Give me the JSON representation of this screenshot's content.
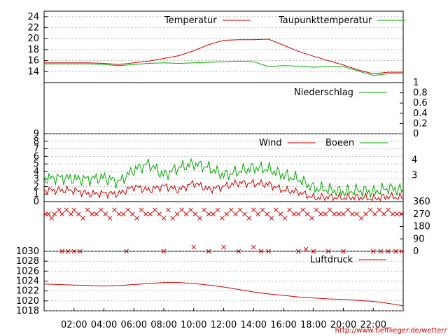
{
  "footer_url": "http://www.tiefflieger.de/wetter/",
  "colors": {
    "red": "#cc0000",
    "green": "#00aa00",
    "grid": "#999999"
  },
  "chart_data": [
    {
      "type": "line",
      "name": "temperature-panel",
      "ylim": [
        12,
        25
      ],
      "yticks": [
        "14",
        "16",
        "18",
        "20",
        "22",
        "24"
      ],
      "ytick_values": [
        14,
        16,
        18,
        20,
        22,
        24
      ],
      "x": [
        0,
        1,
        2,
        3,
        4,
        5,
        6,
        7,
        8,
        9,
        10,
        11,
        12,
        13,
        14,
        15,
        16,
        17,
        18,
        19,
        20,
        21,
        22,
        23,
        24
      ],
      "series": [
        {
          "name": "Temperatur",
          "color": "red",
          "values": [
            15.6,
            15.6,
            15.6,
            15.6,
            15.5,
            15.3,
            15.6,
            15.9,
            16.4,
            16.9,
            17.8,
            18.9,
            19.7,
            19.8,
            19.8,
            19.9,
            18.8,
            17.7,
            16.8,
            16.0,
            15.2,
            14.3,
            13.6,
            13.9,
            13.9
          ]
        },
        {
          "name": "Taupunkttemperatur",
          "color": "green",
          "values": [
            15.4,
            15.4,
            15.4,
            15.4,
            15.3,
            15.1,
            15.3,
            15.5,
            15.6,
            15.5,
            15.6,
            15.7,
            15.8,
            15.9,
            15.8,
            14.9,
            15.1,
            15.0,
            14.8,
            14.9,
            14.9,
            14.1,
            13.3,
            13.6,
            13.6
          ]
        }
      ]
    },
    {
      "type": "line",
      "name": "precipitation-panel",
      "ylim": [
        0,
        1
      ],
      "yticks": [
        "0",
        "0.2",
        "0.4",
        "0.6",
        "0.8",
        "1"
      ],
      "ytick_values": [
        0,
        0.2,
        0.4,
        0.6,
        0.8,
        1
      ],
      "x": [
        0,
        24
      ],
      "series": [
        {
          "name": "Niederschlag",
          "color": "green",
          "values": [
            0,
            0
          ]
        }
      ]
    },
    {
      "type": "line",
      "name": "wind-panel",
      "ylim": [
        0,
        9
      ],
      "yticks": [
        "0",
        "1",
        "2",
        "3",
        "4",
        "5",
        "6",
        "7",
        "8",
        "9"
      ],
      "ytick_values": [
        0,
        1,
        2,
        3,
        4,
        5,
        6,
        7,
        8,
        9
      ],
      "right_ticks": [
        "3",
        "4"
      ],
      "right_tick_values": [
        3.5,
        5.5
      ],
      "x": [
        0,
        1,
        2,
        3,
        4,
        5,
        6,
        7,
        8,
        9,
        10,
        11,
        12,
        13,
        14,
        15,
        16,
        17,
        18,
        19,
        20,
        21,
        22,
        23,
        24
      ],
      "series": [
        {
          "name": "Wind",
          "color": "red",
          "values": [
            1.5,
            1.5,
            1.5,
            1.0,
            1.1,
            1.0,
            2.0,
            1.5,
            2.1,
            1.5,
            2.5,
            1.6,
            2.0,
            2.5,
            2.4,
            2.3,
            1.5,
            1.3,
            0.5,
            0.6,
            0.5,
            0.6,
            0.4,
            0.7,
            0.5
          ]
        },
        {
          "name": "Boeen",
          "color": "green",
          "values": [
            3.0,
            3.2,
            3.0,
            3.0,
            3.2,
            2.6,
            4.2,
            5.0,
            3.5,
            4.5,
            5.0,
            4.5,
            3.5,
            4.0,
            4.5,
            4.3,
            3.5,
            3.0,
            1.8,
            1.6,
            1.3,
            1.5,
            1.3,
            1.8,
            1.5
          ]
        }
      ]
    },
    {
      "type": "scatter",
      "name": "wind-direction-panel",
      "ylim": [
        0,
        360
      ],
      "yticks": [
        "0",
        "90",
        "180",
        "270",
        "360"
      ],
      "ytick_values": [
        0,
        90,
        180,
        270,
        360
      ],
      "color": "red",
      "points": [
        [
          0.1,
          270
        ],
        [
          0.3,
          270
        ],
        [
          0.5,
          240
        ],
        [
          0.7,
          270
        ],
        [
          1.0,
          300
        ],
        [
          1.2,
          270
        ],
        [
          1.5,
          300
        ],
        [
          1.8,
          270
        ],
        [
          2.0,
          300
        ],
        [
          2.3,
          270
        ],
        [
          2.6,
          240
        ],
        [
          2.9,
          300
        ],
        [
          3.2,
          270
        ],
        [
          3.5,
          270
        ],
        [
          3.8,
          300
        ],
        [
          4.1,
          270
        ],
        [
          4.4,
          240
        ],
        [
          4.7,
          300
        ],
        [
          5.0,
          270
        ],
        [
          5.3,
          270
        ],
        [
          5.6,
          300
        ],
        [
          5.9,
          270
        ],
        [
          6.2,
          240
        ],
        [
          6.5,
          300
        ],
        [
          6.8,
          270
        ],
        [
          7.1,
          270
        ],
        [
          7.4,
          300
        ],
        [
          7.7,
          270
        ],
        [
          8.0,
          240
        ],
        [
          8.3,
          300
        ],
        [
          8.6,
          240
        ],
        [
          8.9,
          270
        ],
        [
          9.2,
          300
        ],
        [
          9.5,
          270
        ],
        [
          9.8,
          300
        ],
        [
          10.1,
          270
        ],
        [
          10.4,
          240
        ],
        [
          10.7,
          300
        ],
        [
          11.0,
          270
        ],
        [
          11.3,
          270
        ],
        [
          11.6,
          300
        ],
        [
          11.9,
          240
        ],
        [
          12.2,
          270
        ],
        [
          12.5,
          300
        ],
        [
          12.8,
          270
        ],
        [
          13.1,
          300
        ],
        [
          13.4,
          270
        ],
        [
          13.7,
          240
        ],
        [
          14.0,
          300
        ],
        [
          14.3,
          270
        ],
        [
          14.6,
          300
        ],
        [
          14.9,
          270
        ],
        [
          15.2,
          240
        ],
        [
          15.5,
          300
        ],
        [
          15.8,
          270
        ],
        [
          16.1,
          240
        ],
        [
          16.4,
          300
        ],
        [
          16.7,
          270
        ],
        [
          17.0,
          270
        ],
        [
          17.3,
          300
        ],
        [
          17.6,
          270
        ],
        [
          17.9,
          240
        ],
        [
          18.2,
          300
        ],
        [
          18.5,
          270
        ],
        [
          18.8,
          270
        ],
        [
          19.1,
          300
        ],
        [
          19.4,
          270
        ],
        [
          19.7,
          270
        ],
        [
          20.0,
          270
        ],
        [
          20.3,
          300
        ],
        [
          20.6,
          270
        ],
        [
          20.9,
          270
        ],
        [
          21.2,
          240
        ],
        [
          21.5,
          270
        ],
        [
          21.8,
          300
        ],
        [
          22.1,
          270
        ],
        [
          22.4,
          300
        ],
        [
          22.7,
          270
        ],
        [
          23.0,
          300
        ],
        [
          23.3,
          270
        ],
        [
          23.6,
          270
        ],
        [
          23.9,
          270
        ],
        [
          10.0,
          30
        ],
        [
          12.0,
          30
        ],
        [
          14.0,
          30
        ],
        [
          17.5,
          15
        ],
        [
          1.2,
          0
        ],
        [
          1.6,
          0
        ],
        [
          2.0,
          0
        ],
        [
          2.4,
          0
        ],
        [
          5.5,
          0
        ],
        [
          8.0,
          0
        ],
        [
          11.0,
          0
        ],
        [
          13.0,
          0
        ],
        [
          14.5,
          0
        ],
        [
          15.0,
          0
        ],
        [
          17.0,
          0
        ],
        [
          18.0,
          0
        ],
        [
          19.0,
          0
        ],
        [
          20.0,
          0
        ],
        [
          22.0,
          0
        ],
        [
          22.5,
          0
        ],
        [
          23.0,
          0
        ],
        [
          23.5,
          0
        ],
        [
          23.9,
          0
        ]
      ]
    },
    {
      "type": "line",
      "name": "pressure-panel",
      "ylim": [
        1018,
        1030
      ],
      "yticks": [
        "1018",
        "1020",
        "1022",
        "1024",
        "1026",
        "1028",
        "1030"
      ],
      "ytick_values": [
        1018,
        1020,
        1022,
        1024,
        1026,
        1028,
        1030
      ],
      "x": [
        0,
        1,
        2,
        3,
        4,
        5,
        6,
        7,
        8,
        9,
        10,
        11,
        12,
        13,
        14,
        15,
        16,
        17,
        18,
        19,
        20,
        21,
        22,
        23,
        24
      ],
      "series": [
        {
          "name": "Luftdruck",
          "color": "red",
          "values": [
            1023.4,
            1023.3,
            1023.2,
            1023.1,
            1023.0,
            1023.1,
            1023.3,
            1023.5,
            1023.7,
            1023.7,
            1023.5,
            1023.2,
            1022.8,
            1022.3,
            1021.8,
            1021.4,
            1021.1,
            1020.8,
            1020.6,
            1020.4,
            1020.3,
            1020.1,
            1019.9,
            1019.5,
            1019.0
          ]
        }
      ]
    }
  ],
  "x_axis": {
    "labels": [
      "02:00",
      "04:00",
      "06:00",
      "08:00",
      "10:00",
      "12:00",
      "14:00",
      "16:00",
      "18:00",
      "20:00",
      "22:00"
    ],
    "values": [
      2,
      4,
      6,
      8,
      10,
      12,
      14,
      16,
      18,
      20,
      22
    ]
  }
}
